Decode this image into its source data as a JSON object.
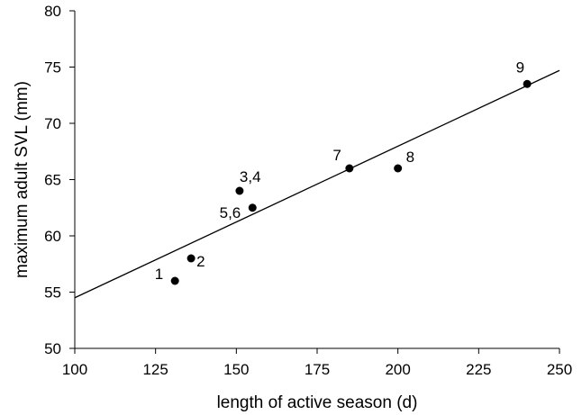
{
  "chart_data": {
    "type": "scatter",
    "title": "",
    "xlabel": "length of active season (d)",
    "ylabel": "maximum adult SVL (mm)",
    "xlim": [
      100,
      250
    ],
    "ylim": [
      50,
      80
    ],
    "xticks": [
      100,
      125,
      150,
      175,
      200,
      225,
      250
    ],
    "yticks": [
      50,
      55,
      60,
      65,
      70,
      75,
      80
    ],
    "grid": false,
    "legend": "none",
    "points": [
      {
        "label": "1",
        "x": 131,
        "y": 56.0
      },
      {
        "label": "2",
        "x": 136,
        "y": 58.0
      },
      {
        "label": "3,4",
        "x": 151,
        "y": 64.0
      },
      {
        "label": "5,6",
        "x": 155,
        "y": 62.5
      },
      {
        "label": "7",
        "x": 185,
        "y": 66.0
      },
      {
        "label": "8",
        "x": 200,
        "y": 66.0
      },
      {
        "label": "9",
        "x": 240,
        "y": 73.5
      }
    ],
    "trendline": {
      "x": [
        100,
        250
      ],
      "y": [
        54.5,
        74.7
      ]
    },
    "colors": {
      "points": "#000000",
      "line": "#000000",
      "axes": "#000000"
    }
  }
}
